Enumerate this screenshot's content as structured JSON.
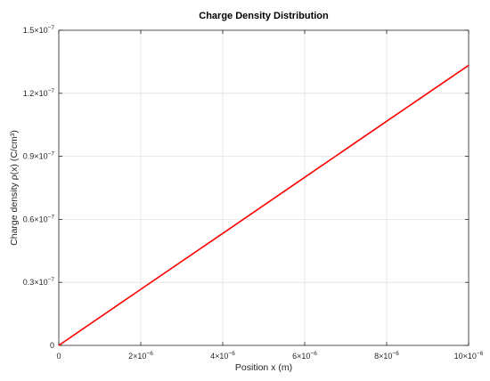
{
  "chart_data": {
    "type": "line",
    "title": "Charge Density Distribution",
    "xlabel": "Position x (m)",
    "ylabel": "Charge density ρ(x) (C/cm³)",
    "xlim": [
      0,
      1e-05
    ],
    "ylim": [
      0,
      1.5e-07
    ],
    "grid": true,
    "legend": "none",
    "x_ticks": [
      {
        "value": 0,
        "label": "0",
        "exp": ""
      },
      {
        "value": 2e-06,
        "label": "2×10",
        "exp": "−6"
      },
      {
        "value": 4e-06,
        "label": "4×10",
        "exp": "−6"
      },
      {
        "value": 6e-06,
        "label": "6×10",
        "exp": "−6"
      },
      {
        "value": 8e-06,
        "label": "8×10",
        "exp": "−6"
      },
      {
        "value": 1e-05,
        "label": "10×10",
        "exp": "−6"
      }
    ],
    "y_ticks": [
      {
        "value": 0,
        "label": "0",
        "exp": ""
      },
      {
        "value": 3e-08,
        "label": "0.3×10",
        "exp": "−7"
      },
      {
        "value": 6e-08,
        "label": "0.6×10",
        "exp": "−7"
      },
      {
        "value": 9e-08,
        "label": "0.9×10",
        "exp": "−7"
      },
      {
        "value": 1.2e-07,
        "label": "1.2×10",
        "exp": "−7"
      },
      {
        "value": 1.5e-07,
        "label": "1.5×10",
        "exp": "−7"
      }
    ],
    "series": [
      {
        "color": "#ff0000",
        "x": [
          0,
          2e-06,
          4e-06,
          6e-06,
          8e-06,
          1e-05
        ],
        "y": [
          0,
          2.67e-08,
          5.33e-08,
          8e-08,
          1.067e-07,
          1.333e-07
        ]
      }
    ]
  }
}
